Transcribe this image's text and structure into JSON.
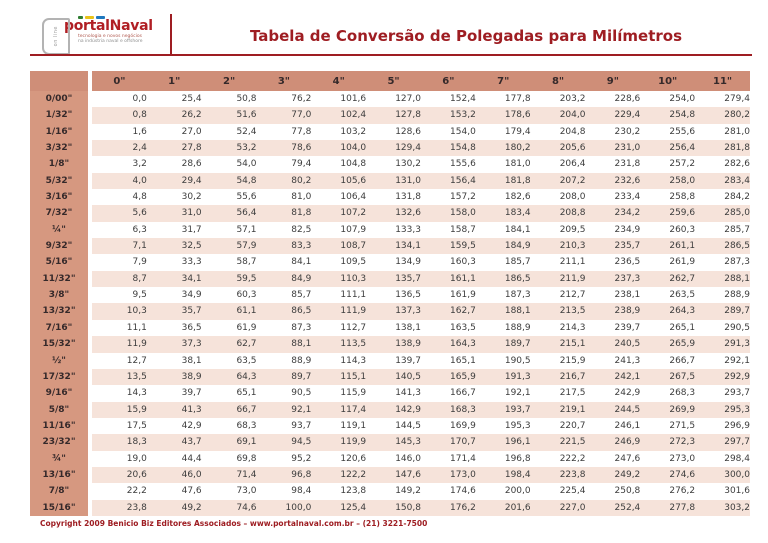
{
  "page": {
    "logo": {
      "vertical_text": "on line",
      "brand": "portalNaval",
      "tagline_line1": "tecnologia e novos negócios",
      "tagline_line2": "na indústria naval e offshore"
    },
    "title": "Tabela de Conversão de Polegadas para Milímetros",
    "footer": "Copyright 2009 Benicio Biz Editores Associados – www.portalnaval.com.br – (21) 3221-7500"
  },
  "colors": {
    "accent_red": "#9e1d22",
    "header_band": "#cf8e78",
    "label_column": "#d69880",
    "row_pink": "#f6e3da",
    "row_white": "#ffffff",
    "cell_text": "#3d3d3d"
  },
  "table": {
    "corner": "",
    "col_headers": [
      "0\"",
      "1\"",
      "2\"",
      "3\"",
      "4\"",
      "5\"",
      "6\"",
      "7\"",
      "8\"",
      "9\"",
      "10\"",
      "11\""
    ],
    "rows": [
      {
        "label": "0/00\"",
        "values": [
          "0,0",
          "25,4",
          "50,8",
          "76,2",
          "101,6",
          "127,0",
          "152,4",
          "177,8",
          "203,2",
          "228,6",
          "254,0",
          "279,4"
        ]
      },
      {
        "label": "1/32\"",
        "values": [
          "0,8",
          "26,2",
          "51,6",
          "77,0",
          "102,4",
          "127,8",
          "153,2",
          "178,6",
          "204,0",
          "229,4",
          "254,8",
          "280,2"
        ]
      },
      {
        "label": "1/16\"",
        "values": [
          "1,6",
          "27,0",
          "52,4",
          "77,8",
          "103,2",
          "128,6",
          "154,0",
          "179,4",
          "204,8",
          "230,2",
          "255,6",
          "281,0"
        ]
      },
      {
        "label": "3/32\"",
        "values": [
          "2,4",
          "27,8",
          "53,2",
          "78,6",
          "104,0",
          "129,4",
          "154,8",
          "180,2",
          "205,6",
          "231,0",
          "256,4",
          "281,8"
        ]
      },
      {
        "label": "1/8\"",
        "values": [
          "3,2",
          "28,6",
          "54,0",
          "79,4",
          "104,8",
          "130,2",
          "155,6",
          "181,0",
          "206,4",
          "231,8",
          "257,2",
          "282,6"
        ]
      },
      {
        "label": "5/32\"",
        "values": [
          "4,0",
          "29,4",
          "54,8",
          "80,2",
          "105,6",
          "131,0",
          "156,4",
          "181,8",
          "207,2",
          "232,6",
          "258,0",
          "283,4"
        ]
      },
      {
        "label": "3/16\"",
        "values": [
          "4,8",
          "30,2",
          "55,6",
          "81,0",
          "106,4",
          "131,8",
          "157,2",
          "182,6",
          "208,0",
          "233,4",
          "258,8",
          "284,2"
        ]
      },
      {
        "label": "7/32\"",
        "values": [
          "5,6",
          "31,0",
          "56,4",
          "81,8",
          "107,2",
          "132,6",
          "158,0",
          "183,4",
          "208,8",
          "234,2",
          "259,6",
          "285,0"
        ]
      },
      {
        "label": "¼\"",
        "values": [
          "6,3",
          "31,7",
          "57,1",
          "82,5",
          "107,9",
          "133,3",
          "158,7",
          "184,1",
          "209,5",
          "234,9",
          "260,3",
          "285,7"
        ]
      },
      {
        "label": "9/32\"",
        "values": [
          "7,1",
          "32,5",
          "57,9",
          "83,3",
          "108,7",
          "134,1",
          "159,5",
          "184,9",
          "210,3",
          "235,7",
          "261,1",
          "286,5"
        ]
      },
      {
        "label": "5/16\"",
        "values": [
          "7,9",
          "33,3",
          "58,7",
          "84,1",
          "109,5",
          "134,9",
          "160,3",
          "185,7",
          "211,1",
          "236,5",
          "261,9",
          "287,3"
        ]
      },
      {
        "label": "11/32\"",
        "values": [
          "8,7",
          "34,1",
          "59,5",
          "84,9",
          "110,3",
          "135,7",
          "161,1",
          "186,5",
          "211,9",
          "237,3",
          "262,7",
          "288,1"
        ]
      },
      {
        "label": "3/8\"",
        "values": [
          "9,5",
          "34,9",
          "60,3",
          "85,7",
          "111,1",
          "136,5",
          "161,9",
          "187,3",
          "212,7",
          "238,1",
          "263,5",
          "288,9"
        ]
      },
      {
        "label": "13/32\"",
        "values": [
          "10,3",
          "35,7",
          "61,1",
          "86,5",
          "111,9",
          "137,3",
          "162,7",
          "188,1",
          "213,5",
          "238,9",
          "264,3",
          "289,7"
        ]
      },
      {
        "label": "7/16\"",
        "values": [
          "11,1",
          "36,5",
          "61,9",
          "87,3",
          "112,7",
          "138,1",
          "163,5",
          "188,9",
          "214,3",
          "239,7",
          "265,1",
          "290,5"
        ]
      },
      {
        "label": "15/32\"",
        "values": [
          "11,9",
          "37,3",
          "62,7",
          "88,1",
          "113,5",
          "138,9",
          "164,3",
          "189,7",
          "215,1",
          "240,5",
          "265,9",
          "291,3"
        ]
      },
      {
        "label": "½\"",
        "values": [
          "12,7",
          "38,1",
          "63,5",
          "88,9",
          "114,3",
          "139,7",
          "165,1",
          "190,5",
          "215,9",
          "241,3",
          "266,7",
          "292,1"
        ]
      },
      {
        "label": "17/32\"",
        "values": [
          "13,5",
          "38,9",
          "64,3",
          "89,7",
          "115,1",
          "140,5",
          "165,9",
          "191,3",
          "216,7",
          "242,1",
          "267,5",
          "292,9"
        ]
      },
      {
        "label": "9/16\"",
        "values": [
          "14,3",
          "39,7",
          "65,1",
          "90,5",
          "115,9",
          "141,3",
          "166,7",
          "192,1",
          "217,5",
          "242,9",
          "268,3",
          "293,7"
        ]
      },
      {
        "label": "5/8\"",
        "values": [
          "15,9",
          "41,3",
          "66,7",
          "92,1",
          "117,4",
          "142,9",
          "168,3",
          "193,7",
          "219,1",
          "244,5",
          "269,9",
          "295,3"
        ]
      },
      {
        "label": "11/16\"",
        "values": [
          "17,5",
          "42,9",
          "68,3",
          "93,7",
          "119,1",
          "144,5",
          "169,9",
          "195,3",
          "220,7",
          "246,1",
          "271,5",
          "296,9"
        ]
      },
      {
        "label": "23/32\"",
        "values": [
          "18,3",
          "43,7",
          "69,1",
          "94,5",
          "119,9",
          "145,3",
          "170,7",
          "196,1",
          "221,5",
          "246,9",
          "272,3",
          "297,7"
        ]
      },
      {
        "label": "¾\"",
        "values": [
          "19,0",
          "44,4",
          "69,8",
          "95,2",
          "120,6",
          "146,0",
          "171,4",
          "196,8",
          "222,2",
          "247,6",
          "273,0",
          "298,4"
        ]
      },
      {
        "label": "13/16\"",
        "values": [
          "20,6",
          "46,0",
          "71,4",
          "96,8",
          "122,2",
          "147,6",
          "173,0",
          "198,4",
          "223,8",
          "249,2",
          "274,6",
          "300,0"
        ]
      },
      {
        "label": "7/8\"",
        "values": [
          "22,2",
          "47,6",
          "73,0",
          "98,4",
          "123,8",
          "149,2",
          "174,6",
          "200,0",
          "225,4",
          "250,8",
          "276,2",
          "301,6"
        ]
      },
      {
        "label": "15/16\"",
        "values": [
          "23,8",
          "49,2",
          "74,6",
          "100,0",
          "125,4",
          "150,8",
          "176,2",
          "201,6",
          "227,0",
          "252,4",
          "277,8",
          "303,2"
        ]
      }
    ]
  }
}
